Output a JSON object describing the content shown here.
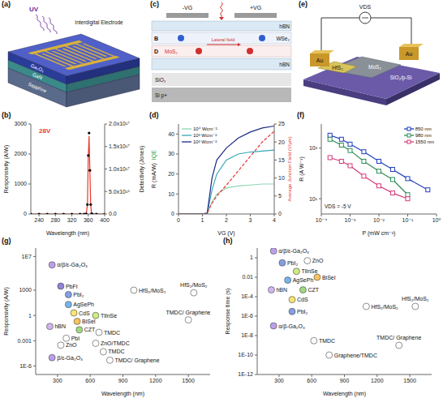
{
  "chart_data": [
    {
      "type": "line",
      "title": "(b)",
      "xlabel": "Wavelength (nm)",
      "ylabel": "Responsivity (A/W)",
      "y2label": "Detectivity (Jones)",
      "x": [
        220,
        240,
        260,
        280,
        300,
        320,
        340,
        350,
        355,
        358,
        360,
        362,
        364,
        366,
        368,
        370,
        380,
        400
      ],
      "xlim": [
        220,
        400
      ],
      "xticks": [
        240,
        280,
        320,
        360,
        400
      ],
      "ylim": [
        0,
        3000
      ],
      "yticks": [
        0,
        1000,
        2000,
        3000
      ],
      "y2lim": [
        0,
        2e+17
      ],
      "y2ticks": [
        {
          "value": 0,
          "label": "0.0"
        },
        {
          "value": 5e+16,
          "label": "5.0x10¹⁶"
        },
        {
          "value": 1e+17,
          "label": "1.0x10¹⁷"
        },
        {
          "value": 1.5e+17,
          "label": "1.5x10¹⁷"
        },
        {
          "value": 2e+17,
          "label": "2.0x10¹⁷"
        }
      ],
      "annotations": [
        {
          "text": "28V",
          "color": "#e8392b"
        }
      ],
      "series": [
        {
          "color": "#e8392b",
          "line_style": "solid",
          "marker": "none",
          "values": [
            0,
            0,
            0,
            0,
            0,
            0,
            0,
            0,
            5,
            300,
            1900,
            2600,
            1400,
            300,
            10,
            0,
            0,
            0
          ]
        },
        {
          "color": "#000000",
          "axis": "y2",
          "line_style": "none",
          "marker": "circle",
          "values": [
            0,
            0,
            0,
            0,
            0,
            0,
            0,
            0,
            400000000000000.0,
            2.1e+16,
            1.3e+17,
            1.8e+17,
            9.7e+16,
            2.1e+16,
            700000000000000.0,
            0,
            0,
            0
          ]
        }
      ]
    },
    {
      "type": "line",
      "title": "(d)",
      "xlabel": "VG (V)",
      "ylabel": "R (mA/W)",
      "y2label": "Average Junction Field (V/μm)",
      "x": [
        0,
        0.5,
        1,
        1.2,
        1.4,
        1.6,
        2,
        2.5,
        3,
        3.5,
        4
      ],
      "xlim": [
        0,
        4
      ],
      "xticks": [
        0,
        1,
        2,
        3,
        4
      ],
      "ylim": [
        0,
        45
      ],
      "yticks": [
        0,
        10,
        20,
        30,
        40
      ],
      "y2lim": [
        0,
        25
      ],
      "y2ticks": [
        0,
        5,
        10,
        15,
        20,
        25
      ],
      "legend": "upper left",
      "annotations": [
        {
          "text": "IQE",
          "color": "#2e9e3e"
        }
      ],
      "series": [
        {
          "name": "10⁴ Wcm⁻²",
          "color": "#8fd6b4",
          "line_style": "solid",
          "marker": "none",
          "values": [
            0,
            0,
            0,
            0.2,
            6,
            10,
            13,
            14,
            14.5,
            15,
            15
          ]
        },
        {
          "name": "10³ Wcm⁻²",
          "color": "#3aa6b9",
          "line_style": "solid",
          "marker": "none",
          "values": [
            0,
            0,
            0,
            0.3,
            12,
            20,
            27,
            30,
            31,
            31.5,
            32
          ]
        },
        {
          "name": "10² Wcm⁻²",
          "color": "#1b2a86",
          "line_style": "solid",
          "marker": "none",
          "values": [
            0,
            0,
            0,
            0.5,
            18,
            27,
            33,
            38,
            41,
            43,
            44
          ]
        },
        {
          "color": "#e53935",
          "axis": "y2",
          "line_style": "dashed",
          "marker": "none",
          "values": [
            0,
            0,
            0,
            0.3,
            3,
            5,
            8,
            12,
            16,
            20,
            23
          ]
        }
      ]
    },
    {
      "type": "line",
      "title": "(f)",
      "xlabel": "P (mW cm⁻²)",
      "ylabel": "R (A W⁻¹)",
      "log": true,
      "x": [
        0.0002,
        0.0005,
        0.001,
        0.003,
        0.01,
        0.03,
        0.1,
        0.5
      ],
      "xlim": [
        0.0001,
        1
      ],
      "xticks": [
        {
          "value": 0.0001,
          "label": "10⁻⁴"
        },
        {
          "value": 0.001,
          "label": "10⁻³"
        },
        {
          "value": 0.01,
          "label": "10⁻²"
        },
        {
          "value": 0.1,
          "label": "10⁻¹"
        },
        {
          "value": 1,
          "label": "10⁰"
        }
      ],
      "ylim": [
        5,
        300
      ],
      "yticks": [
        {
          "value": 10,
          "label": "10¹"
        },
        {
          "value": 100,
          "label": "10²"
        }
      ],
      "legend": "upper right",
      "annotations": [
        {
          "text": "VDS = -5 V",
          "color": "#111111"
        }
      ],
      "series": [
        {
          "name": "850 nm",
          "color": "#1f3fbf",
          "marker": "square",
          "line_style": "solid",
          "values": [
            180,
            150,
            120,
            85,
            55,
            38,
            25,
            15
          ]
        },
        {
          "name": "980 nm",
          "color": "#2e8b57",
          "marker": "square",
          "line_style": "solid",
          "values": [
            150,
            115,
            90,
            55,
            35,
            24,
            12,
            null
          ]
        },
        {
          "name": "1550 nm",
          "color": "#d63a7a",
          "marker": "square",
          "line_style": "solid",
          "values": [
            65,
            55,
            45,
            28,
            18,
            13,
            10,
            null
          ]
        }
      ]
    },
    {
      "type": "scatter",
      "title": "(g)",
      "xlabel": "Wavelength (nm)",
      "ylabel": "Responsivity (A/W)",
      "log": "y",
      "xlim": [
        100,
        1700
      ],
      "xticks": [
        300,
        600,
        900,
        1200,
        1500
      ],
      "ylim": [
        1e-07,
        100000000.0
      ],
      "yticks": [
        {
          "value": 1e-06,
          "label": "1E-6"
        },
        0.001,
        1,
        1000,
        {
          "value": 10000000.0,
          "label": "1E7"
        }
      ],
      "x": [
        250,
        330,
        400,
        400,
        450,
        650,
        480,
        500,
        680,
        380,
        230,
        330,
        650,
        720,
        250,
        780,
        1000,
        1550,
        1500
      ],
      "values": [
        1000000.0,
        3000,
        300,
        20,
        2,
        1,
        0.2,
        0.02,
        0.01,
        0.002,
        0.05,
        0.0003,
        0.0005,
        5e-05,
        1e-05,
        5e-06,
        1000,
        500,
        0.3
      ],
      "labels": [
        "α/β/ε-Ga₂O₃",
        "PbFI",
        "PbI₂",
        "AgSePh",
        "CdS",
        "TlInSe",
        "BiSeI",
        "CZT",
        "TMDC",
        "PbI",
        "hBN",
        "ZnO",
        "ZnO/TMDC",
        "TMDC",
        "β/ε-Ga₂O₃",
        "TMDC/ Graphene",
        "HfS₂/MoS₂",
        "HfS₂/MoS₂",
        "TMDC/ Graphene"
      ],
      "colors": [
        "#b08ee8",
        "#7b6fd0",
        "#6f8ee0",
        "#5fa8e8",
        "#f4e05a",
        "#c6e870",
        "#f5b942",
        "#8fd46a",
        "#ffffff",
        "#ffffff",
        "#c8a8f0",
        "#ffffff",
        "#ffffff",
        "#ffffff",
        "#b08ee8",
        "#ffffff",
        "#ffffff",
        "#ffffff",
        "#ffffff"
      ]
    },
    {
      "type": "scatter",
      "title": "(h)",
      "xlabel": "Wavelength (nm)",
      "ylabel": "Response time (s)",
      "log": "y",
      "xlim": [
        100,
        1700
      ],
      "xticks": [
        300,
        600,
        900,
        1200,
        1500
      ],
      "ylim": [
        1e-12,
        10
      ],
      "yticks": [
        {
          "value": 1e-12,
          "label": "1E-12"
        },
        {
          "value": 1e-10,
          "label": "1E-10"
        },
        {
          "value": 1e-08,
          "label": "1E-8"
        },
        {
          "value": 1e-06,
          "label": "1E-6"
        },
        {
          "value": 0.0001,
          "label": "1E-4"
        },
        0.01,
        1
      ],
      "x": [
        250,
        330,
        560,
        460,
        380,
        650,
        230,
        520,
        420,
        420,
        250,
        620,
        760,
        1400,
        1100,
        1550
      ],
      "values": [
        5,
        0.3,
        0.5,
        0.04,
        0.005,
        0.01,
        0.0005,
        0.0005,
        5e-05,
        3e-06,
        1e-07,
        3e-09,
        1e-10,
        1e-09,
        1e-05,
        1e-05
      ],
      "labels": [
        "α/β/ε-Ga₂O₃",
        "PbI₂",
        "ZnO",
        "TlInSe",
        "AgSePh",
        "BiSeI",
        "hBN",
        "CZT",
        "CdS",
        "PbI₂",
        "α/β-Ga₂O₃",
        "TMDC",
        "Graphene/TMDC",
        "TMDC/ Graphene",
        "HfS₂/MoS₂",
        "HfS₂/MoS₂"
      ],
      "colors": [
        "#b08ee8",
        "#6f8ee0",
        "#ffffff",
        "#c6e870",
        "#5fa8e8",
        "#f5b942",
        "#c8a8f0",
        "#8fd46a",
        "#f4e05a",
        "#6f8ee0",
        "#b08ee8",
        "#ffffff",
        "#ffffff",
        "#ffffff",
        "#ffffff",
        "#ffffff"
      ]
    }
  ],
  "diagrams": [
    {
      "title": "(a)",
      "light": "UV",
      "electrode": "Interdigital Electrode",
      "layers": [
        "Ga₂O₃",
        "GaN",
        "Sapphire"
      ]
    },
    {
      "title": "(c)",
      "gates": [
        "-VG",
        "+VG"
      ],
      "layers": [
        "hBN",
        "WSe₂",
        "MoS₂",
        "hBN",
        "SiO₂",
        "Si p+"
      ],
      "labels": [
        "B",
        "D",
        "Lateral field"
      ]
    },
    {
      "title": "(e)",
      "source": "VDS",
      "electrodes": [
        "Au",
        "Au"
      ],
      "materials": [
        "HfS₂",
        "MoS₂"
      ],
      "substrate": "SiO₂/p-Si"
    }
  ]
}
